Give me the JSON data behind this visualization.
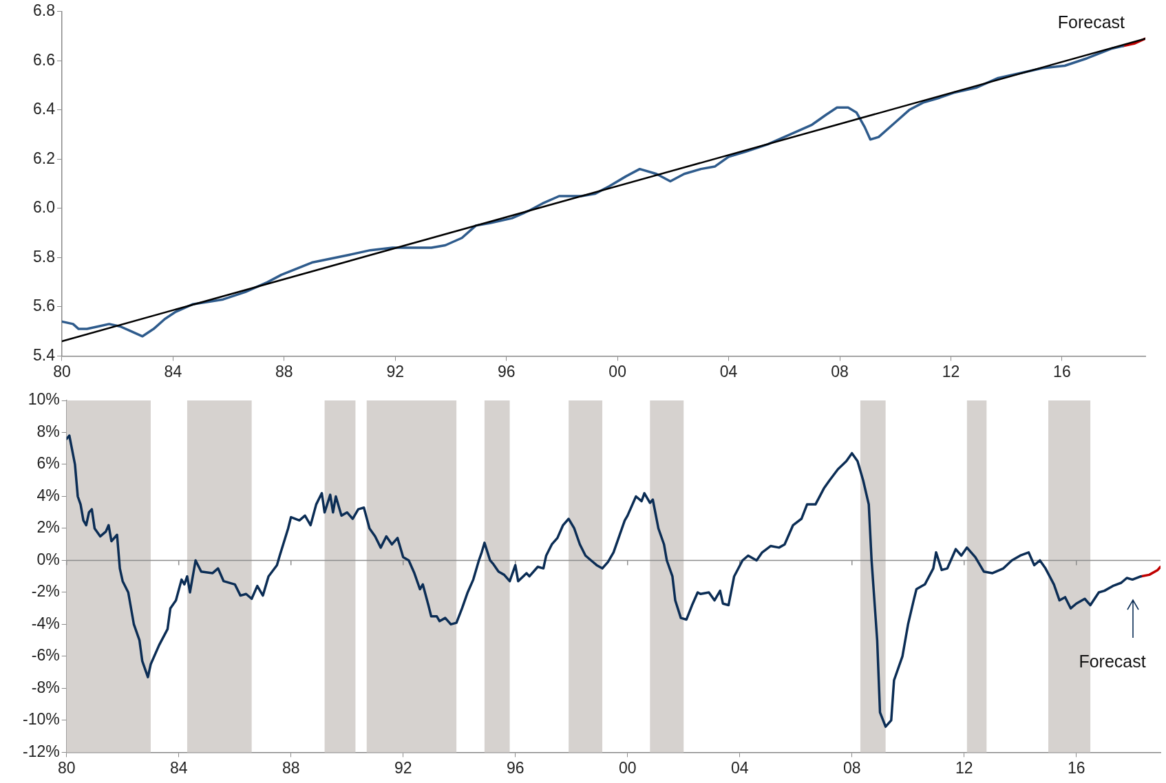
{
  "chart_data": [
    {
      "type": "line",
      "xlim": [
        1980,
        2019
      ],
      "xticks": [
        {
          "value": 1980,
          "label": "80"
        },
        {
          "value": 1984,
          "label": "84"
        },
        {
          "value": 1988,
          "label": "88"
        },
        {
          "value": 1992,
          "label": "92"
        },
        {
          "value": 1996,
          "label": "96"
        },
        {
          "value": 2000,
          "label": "00"
        },
        {
          "value": 2004,
          "label": "04"
        },
        {
          "value": 2008,
          "label": "08"
        },
        {
          "value": 2012,
          "label": "12"
        },
        {
          "value": 2016,
          "label": "16"
        }
      ],
      "ylim": [
        5.4,
        6.8
      ],
      "yticks": [
        5.4,
        5.6,
        5.8,
        {
          "value": 6,
          "label": "6.0"
        },
        6.2,
        6.4,
        6.6,
        6.8
      ],
      "grid": false,
      "legend": false,
      "marker": "none",
      "line_style": "solid",
      "series": [
        {
          "type": "line",
          "color": "#000000",
          "x": [
            1980,
            2019
          ],
          "values": [
            5.46,
            6.69
          ]
        },
        {
          "color": "#2e5b8c",
          "x": [
            1980.0,
            1980.4,
            1980.6,
            1980.9,
            1981.3,
            1981.7,
            1982.1,
            1982.5,
            1982.9,
            1983.3,
            1983.7,
            1984.1,
            1984.7,
            1985.8,
            1986.6,
            1987.4,
            1987.9,
            1989.0,
            1990.3,
            1991.1,
            1991.9,
            1992.7,
            1993.3,
            1993.8,
            1994.4,
            1994.9,
            1995.4,
            1996.2,
            1996.8,
            1997.3,
            1997.9,
            1998.7,
            1999.2,
            1999.7,
            2000.3,
            2000.8,
            2001.4,
            2001.9,
            2002.4,
            2003.0,
            2003.5,
            2004.0,
            2004.6,
            2005.4,
            2006.2,
            2007.0,
            2007.5,
            2007.9,
            2008.3,
            2008.6,
            2008.9,
            2009.1,
            2009.4,
            2010.0,
            2010.5,
            2011.0,
            2011.6,
            2012.1,
            2012.9,
            2013.7,
            2014.5,
            2015.3,
            2016.1,
            2016.9,
            2017.8,
            2018.2
          ],
          "values": [
            5.54,
            5.53,
            5.51,
            5.51,
            5.52,
            5.53,
            5.52,
            5.5,
            5.48,
            5.51,
            5.55,
            5.58,
            5.61,
            5.63,
            5.66,
            5.7,
            5.73,
            5.78,
            5.81,
            5.83,
            5.84,
            5.84,
            5.84,
            5.85,
            5.88,
            5.93,
            5.94,
            5.96,
            5.99,
            6.02,
            6.05,
            6.05,
            6.06,
            6.09,
            6.13,
            6.16,
            6.14,
            6.11,
            6.14,
            6.16,
            6.17,
            6.21,
            6.23,
            6.26,
            6.3,
            6.34,
            6.38,
            6.41,
            6.41,
            6.39,
            6.33,
            6.28,
            6.29,
            6.35,
            6.4,
            6.43,
            6.45,
            6.47,
            6.49,
            6.53,
            6.55,
            6.57,
            6.58,
            6.61,
            6.65,
            6.66
          ]
        },
        {
          "color": "#c00000",
          "x": [
            2018.2,
            2018.6,
            2019.0
          ],
          "values": [
            6.66,
            6.67,
            6.69
          ]
        }
      ],
      "annotations": [
        {
          "text": "Forecast",
          "x": 2019.0,
          "y": 6.69
        }
      ]
    },
    {
      "type": "line",
      "xlim": [
        1980,
        2019
      ],
      "xticks": [
        {
          "value": 1980,
          "label": "80"
        },
        {
          "value": 1984,
          "label": "84"
        },
        {
          "value": 1988,
          "label": "88"
        },
        {
          "value": 1992,
          "label": "92"
        },
        {
          "value": 1996,
          "label": "96"
        },
        {
          "value": 2000,
          "label": "00"
        },
        {
          "value": 2004,
          "label": "04"
        },
        {
          "value": 2008,
          "label": "08"
        },
        {
          "value": 2012,
          "label": "12"
        },
        {
          "value": 2016,
          "label": "16"
        }
      ],
      "ylim": [
        -12,
        10
      ],
      "yticks": [
        {
          "value": -12,
          "label": "-12%"
        },
        {
          "value": -10,
          "label": "-10%"
        },
        {
          "value": -8,
          "label": "-8%"
        },
        {
          "value": -6,
          "label": "-6%"
        },
        {
          "value": -4,
          "label": "-4%"
        },
        {
          "value": -2,
          "label": "-2%"
        },
        {
          "value": 0,
          "label": "0%"
        },
        {
          "value": 2,
          "label": "2%"
        },
        {
          "value": 4,
          "label": "4%"
        },
        {
          "value": 6,
          "label": "6%"
        },
        {
          "value": 8,
          "label": "8%"
        },
        {
          "value": 10,
          "label": "10%"
        }
      ],
      "grid": false,
      "legend": false,
      "marker": "none",
      "line_style": "solid",
      "bands": [
        {
          "axis": "x",
          "from": 1980.0,
          "to": 1983.0,
          "color": "#d6d2cf"
        },
        {
          "axis": "x",
          "from": 1984.3,
          "to": 1986.6,
          "color": "#d6d2cf"
        },
        {
          "axis": "x",
          "from": 1989.2,
          "to": 1990.3,
          "color": "#d6d2cf"
        },
        {
          "axis": "x",
          "from": 1990.7,
          "to": 1993.9,
          "color": "#d6d2cf"
        },
        {
          "axis": "x",
          "from": 1994.9,
          "to": 1995.8,
          "color": "#d6d2cf"
        },
        {
          "axis": "x",
          "from": 1997.9,
          "to": 1999.1,
          "color": "#d6d2cf"
        },
        {
          "axis": "x",
          "from": 2000.8,
          "to": 2002.0,
          "color": "#d6d2cf"
        },
        {
          "axis": "x",
          "from": 2008.3,
          "to": 2009.2,
          "color": "#d6d2cf"
        },
        {
          "axis": "x",
          "from": 2012.1,
          "to": 2012.8,
          "color": "#d6d2cf"
        },
        {
          "axis": "x",
          "from": 2015.0,
          "to": 2016.5,
          "color": "#d6d2cf"
        }
      ],
      "ref_lines": [
        {
          "axis": "y",
          "value": 0,
          "color": "#8c8c8c"
        }
      ],
      "series": [
        {
          "color": "#0b2d55",
          "x": [
            1980.0,
            1980.1,
            1980.3,
            1980.4,
            1980.5,
            1980.6,
            1980.7,
            1980.8,
            1980.9,
            1981.0,
            1981.2,
            1981.4,
            1981.5,
            1981.6,
            1981.8,
            1981.9,
            1982.0,
            1982.2,
            1982.4,
            1982.6,
            1982.7,
            1982.9,
            1983.0,
            1983.3,
            1983.6,
            1983.7,
            1983.9,
            1984.1,
            1984.2,
            1984.3,
            1984.4,
            1984.6,
            1984.8,
            1985.2,
            1985.4,
            1985.6,
            1986.0,
            1986.2,
            1986.4,
            1986.6,
            1986.8,
            1987.0,
            1987.2,
            1987.5,
            1987.6,
            1987.9,
            1988.0,
            1988.3,
            1988.5,
            1988.7,
            1988.9,
            1989.1,
            1989.2,
            1989.4,
            1989.5,
            1989.6,
            1989.8,
            1990.0,
            1990.2,
            1990.4,
            1990.6,
            1990.8,
            1991.0,
            1991.2,
            1991.4,
            1991.6,
            1991.8,
            1992.0,
            1992.2,
            1992.4,
            1992.6,
            1992.7,
            1992.9,
            1993.0,
            1993.2,
            1993.3,
            1993.5,
            1993.7,
            1993.9,
            1994.1,
            1994.3,
            1994.5,
            1994.7,
            1994.8,
            1994.9,
            1995.1,
            1995.2,
            1995.4,
            1995.6,
            1995.8,
            1996.0,
            1996.1,
            1996.4,
            1996.5,
            1996.8,
            1997.0,
            1997.1,
            1997.3,
            1997.5,
            1997.7,
            1997.9,
            1998.1,
            1998.3,
            1998.5,
            1998.7,
            1998.9,
            1999.1,
            1999.3,
            1999.5,
            1999.7,
            1999.9,
            2000.0,
            2000.3,
            2000.5,
            2000.6,
            2000.8,
            2000.9,
            2001.1,
            2001.3,
            2001.4,
            2001.6,
            2001.7,
            2001.9,
            2002.1,
            2002.3,
            2002.5,
            2002.6,
            2002.9,
            2003.1,
            2003.3,
            2003.4,
            2003.6,
            2003.8,
            2004.1,
            2004.3,
            2004.6,
            2004.8,
            2005.1,
            2005.4,
            2005.6,
            2005.9,
            2006.2,
            2006.4,
            2006.7,
            2007.0,
            2007.2,
            2007.5,
            2007.8,
            2008.0,
            2008.2,
            2008.4,
            2008.6,
            2008.7,
            2008.9,
            2009.0,
            2009.2,
            2009.4,
            2009.5,
            2009.8,
            2010.0,
            2010.2,
            2010.3,
            2010.6,
            2010.9,
            2011.0,
            2011.2,
            2011.4,
            2011.7,
            2011.9,
            2012.1,
            2012.4,
            2012.7,
            2013.0,
            2013.4,
            2013.7,
            2014.0,
            2014.3,
            2014.5,
            2014.7,
            2014.9,
            2015.2,
            2015.4,
            2015.6,
            2015.8,
            2016.0,
            2016.3,
            2016.5,
            2016.8,
            2017.0,
            2017.3,
            2017.6,
            2017.8,
            2018.0,
            2018.3
          ],
          "values": [
            7.6,
            7.8,
            6.0,
            4.0,
            3.5,
            2.5,
            2.2,
            3.0,
            3.2,
            2.0,
            1.5,
            1.8,
            2.2,
            1.2,
            1.6,
            -0.5,
            -1.3,
            -2.0,
            -4.0,
            -5.0,
            -6.3,
            -7.3,
            -6.5,
            -5.3,
            -4.3,
            -3.0,
            -2.5,
            -1.2,
            -1.5,
            -1.0,
            -2.0,
            0.0,
            -0.7,
            -0.8,
            -0.5,
            -1.3,
            -1.5,
            -2.2,
            -2.1,
            -2.4,
            -1.6,
            -2.2,
            -1.0,
            -0.3,
            0.3,
            2.0,
            2.7,
            2.5,
            2.8,
            2.2,
            3.5,
            4.2,
            3.0,
            4.1,
            3.0,
            4.0,
            2.8,
            3.0,
            2.6,
            3.2,
            3.3,
            2.0,
            1.5,
            0.8,
            1.5,
            1.0,
            1.4,
            0.2,
            0.0,
            -0.8,
            -1.8,
            -1.5,
            -2.8,
            -3.5,
            -3.5,
            -3.8,
            -3.6,
            -4.0,
            -3.9,
            -3.0,
            -2.0,
            -1.2,
            0.0,
            0.5,
            1.1,
            0.0,
            -0.2,
            -0.7,
            -0.9,
            -1.3,
            -0.3,
            -1.3,
            -0.8,
            -1.0,
            -0.4,
            -0.5,
            0.3,
            1.0,
            1.4,
            2.2,
            2.6,
            2.0,
            1.0,
            0.3,
            0.0,
            -0.3,
            -0.5,
            -0.1,
            0.5,
            1.5,
            2.5,
            2.8,
            4.0,
            3.7,
            4.2,
            3.6,
            3.8,
            2.0,
            1.0,
            0.0,
            -1.0,
            -2.5,
            -3.6,
            -3.7,
            -2.8,
            -2.0,
            -2.1,
            -2.0,
            -2.5,
            -1.9,
            -2.7,
            -2.8,
            -1.0,
            0.0,
            0.3,
            0.0,
            0.5,
            0.9,
            0.8,
            1.0,
            2.2,
            2.6,
            3.5,
            3.5,
            4.5,
            5.0,
            5.7,
            6.2,
            6.7,
            6.2,
            5.0,
            3.5,
            0.0,
            -5.0,
            -9.5,
            -10.4,
            -10.0,
            -7.5,
            -6.0,
            -4.0,
            -2.5,
            -1.8,
            -1.5,
            -0.5,
            0.5,
            -0.6,
            -0.5,
            0.7,
            0.3,
            0.8,
            0.2,
            -0.7,
            -0.8,
            -0.5,
            0.0,
            0.3,
            0.5,
            -0.3,
            0.0,
            -0.5,
            -1.5,
            -2.5,
            -2.3,
            -3.0,
            -2.7,
            -2.4,
            -2.8,
            -2.0,
            -1.9,
            -1.6,
            -1.4,
            -1.1,
            -1.2,
            -1.0
          ]
        },
        {
          "color": "#c00000",
          "x": [
            2018.3,
            2018.6,
            2018.9,
            2019.0
          ],
          "values": [
            -1.0,
            -0.9,
            -0.6,
            -0.4
          ]
        }
      ],
      "annotations": [
        "Forecast"
      ]
    }
  ]
}
